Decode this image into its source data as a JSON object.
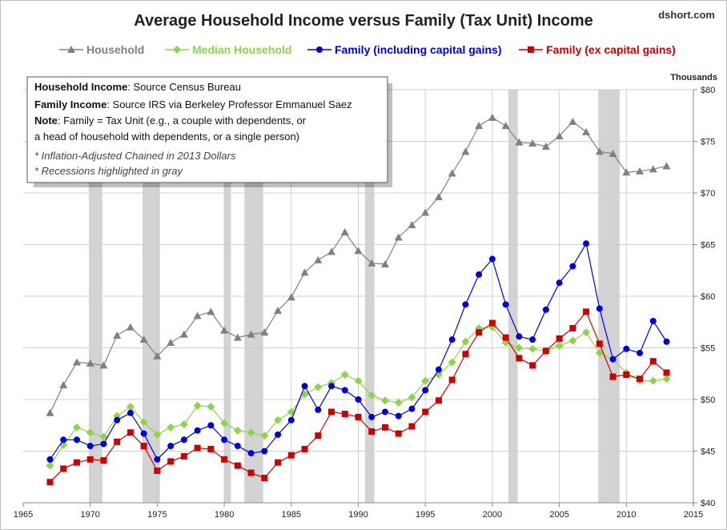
{
  "chart_data": {
    "type": "line",
    "title": "Average Household Income versus Family (Tax Unit) Income",
    "source": "dshort.com",
    "y_unit": "Thousands",
    "xlim": [
      1965,
      2015
    ],
    "ylim": [
      40,
      80
    ],
    "x_ticks": [
      "1965",
      "1970",
      "1975",
      "1980",
      "1985",
      "1990",
      "1995",
      "2000",
      "2005",
      "2010",
      "2015"
    ],
    "y_ticks": [
      "$40",
      "$45",
      "$50",
      "$55",
      "$60",
      "$65",
      "$70",
      "$75",
      "$80"
    ],
    "y_tick_values": [
      40,
      45,
      50,
      55,
      60,
      65,
      70,
      75,
      80
    ],
    "x_tick_values": [
      1965,
      1970,
      1975,
      1980,
      1985,
      1990,
      1995,
      2000,
      2005,
      2010,
      2015
    ],
    "grid": true,
    "legend_position": "top",
    "recessions": [
      [
        1969.9,
        1970.9
      ],
      [
        1973.9,
        1975.2
      ],
      [
        1980.0,
        1980.5
      ],
      [
        1981.5,
        1982.9
      ],
      [
        1990.5,
        1991.2
      ],
      [
        2001.2,
        2001.9
      ],
      [
        2007.9,
        2009.5
      ]
    ],
    "x": [
      1967,
      1968,
      1969,
      1970,
      1971,
      1972,
      1973,
      1974,
      1975,
      1976,
      1977,
      1978,
      1979,
      1980,
      1981,
      1982,
      1983,
      1984,
      1985,
      1986,
      1987,
      1988,
      1989,
      1990,
      1991,
      1992,
      1993,
      1994,
      1995,
      1996,
      1997,
      1998,
      1999,
      2000,
      2001,
      2002,
      2003,
      2004,
      2005,
      2006,
      2007,
      2008,
      2009,
      2010,
      2011,
      2012,
      2013
    ],
    "series": [
      {
        "name": "Household",
        "color": "#808080",
        "marker": "triangle",
        "values": [
          48.7,
          51.4,
          53.6,
          53.5,
          53.3,
          56.2,
          57.0,
          55.8,
          54.2,
          55.5,
          56.3,
          58.1,
          58.5,
          56.7,
          56.0,
          56.3,
          56.5,
          58.6,
          59.9,
          62.3,
          63.5,
          64.3,
          66.2,
          64.4,
          63.2,
          63.1,
          65.7,
          66.9,
          68.1,
          69.6,
          71.9,
          74.0,
          76.5,
          77.3,
          76.5,
          74.9,
          74.8,
          74.5,
          75.5,
          76.9,
          75.9,
          74.0,
          73.8,
          72.0,
          72.1,
          72.3,
          72.6
        ]
      },
      {
        "name": "Median Household",
        "color": "#8ed44a",
        "marker": "diamond",
        "values": [
          43.6,
          45.6,
          47.3,
          46.8,
          46.4,
          48.4,
          49.3,
          47.8,
          46.6,
          47.3,
          47.6,
          49.4,
          49.3,
          47.7,
          47.0,
          46.8,
          46.5,
          48.0,
          48.8,
          50.5,
          51.2,
          51.6,
          52.4,
          51.8,
          50.4,
          49.9,
          49.7,
          50.2,
          51.8,
          52.4,
          53.6,
          55.6,
          56.9,
          57.0,
          55.5,
          55.0,
          54.9,
          54.7,
          55.2,
          55.7,
          56.5,
          54.5,
          53.9,
          52.6,
          51.8,
          51.8,
          52.0
        ]
      },
      {
        "name": "Family (including capital gains)",
        "color": "#0000dd",
        "marker": "circle",
        "values": [
          44.2,
          46.1,
          46.1,
          45.5,
          45.7,
          48.0,
          48.7,
          46.7,
          44.2,
          45.5,
          46.1,
          47.0,
          47.5,
          46.1,
          45.5,
          44.8,
          45.0,
          46.6,
          48.0,
          51.3,
          49.0,
          51.3,
          50.9,
          50.0,
          48.3,
          48.8,
          48.4,
          49.1,
          50.9,
          52.9,
          55.8,
          59.2,
          62.1,
          63.6,
          59.2,
          56.1,
          55.8,
          58.7,
          61.3,
          62.9,
          65.1,
          58.8,
          53.9,
          54.9,
          54.5,
          57.6,
          55.6
        ]
      },
      {
        "name": "Family (ex capital gains)",
        "color": "#cc0000",
        "marker": "square",
        "values": [
          42.0,
          43.3,
          43.9,
          44.2,
          44.1,
          45.9,
          46.8,
          45.5,
          43.1,
          44.0,
          44.5,
          45.3,
          45.2,
          44.2,
          43.6,
          42.9,
          42.4,
          43.9,
          44.6,
          45.2,
          46.5,
          48.8,
          48.6,
          48.3,
          46.9,
          47.3,
          46.7,
          47.4,
          48.8,
          49.9,
          51.9,
          54.4,
          56.5,
          57.4,
          56.0,
          54.0,
          53.3,
          54.7,
          55.9,
          56.9,
          58.5,
          55.4,
          52.2,
          52.4,
          52.0,
          53.7,
          52.6
        ]
      }
    ]
  },
  "note_box": {
    "line1_bold": "Household Income",
    "line1_rest": ": Source Census Bureau",
    "line2_bold": "Family Income",
    "line2_rest": ": Source  IRS via Berkeley Professor  Emmanuel  Saez",
    "line3_bold": "Note",
    "line3_rest": ": Family = Tax Unit (e.g., a couple with dependents, or",
    "line4": "a head of household with dependents, or a single person)",
    "line5": "* Inflation-Adjusted Chained in 2013 Dollars",
    "line6": "* Recessions highlighted in gray"
  }
}
